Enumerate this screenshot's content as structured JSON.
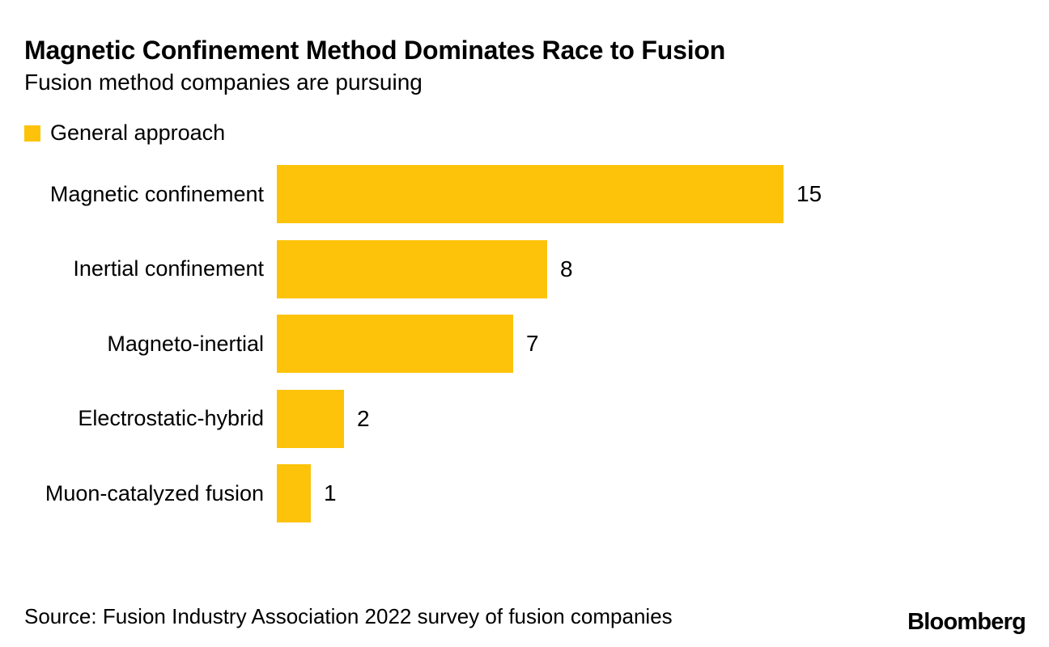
{
  "header": {
    "title": "Magnetic Confinement Method Dominates Race to Fusion",
    "subtitle": "Fusion method companies are pursuing"
  },
  "legend": {
    "label": "General approach",
    "swatch_color": "#FDC30A"
  },
  "chart_data": {
    "type": "bar",
    "orientation": "horizontal",
    "title": "Magnetic Confinement Method Dominates Race to Fusion",
    "subtitle": "Fusion method companies are pursuing",
    "series_name": "General approach",
    "categories": [
      "Magnetic confinement",
      "Inertial confinement",
      "Magneto-inertial",
      "Electrostatic-hybrid",
      "Muon-catalyzed fusion"
    ],
    "values": [
      15,
      8,
      7,
      2,
      1
    ],
    "xlim": [
      0,
      15
    ],
    "bar_color": "#FDC30A",
    "grid": false,
    "show_value_labels": true,
    "value_label_position": "right-of-bar",
    "legend_position": "top-left"
  },
  "footer": {
    "source": "Source: Fusion Industry Association 2022 survey of fusion companies",
    "brand": "Bloomberg"
  }
}
